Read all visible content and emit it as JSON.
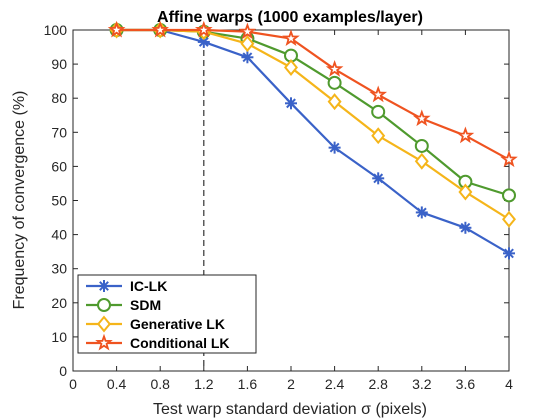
{
  "chart_data": {
    "type": "line",
    "title": "Affine warps (1000 examples/layer)",
    "xlabel": "Test warp standard deviation σ (pixels)",
    "ylabel": "Frequency of convergence (%)",
    "xlim": [
      0,
      4
    ],
    "ylim": [
      0,
      100
    ],
    "xticks": [
      "0",
      "0.4",
      "0.8",
      "1.2",
      "1.6",
      "2",
      "2.4",
      "2.8",
      "3.2",
      "3.6",
      "4"
    ],
    "yticks": [
      "0",
      "10",
      "20",
      "30",
      "40",
      "50",
      "60",
      "70",
      "80",
      "90",
      "100"
    ],
    "x": [
      0.4,
      0.8,
      1.2,
      1.6,
      2.0,
      2.4,
      2.8,
      3.2,
      3.6,
      4.0
    ],
    "reference_line_x": 1.2,
    "grid": false,
    "legend_position": "bottom-left",
    "series": [
      {
        "name": "IC-LK",
        "color": "#3a62c8",
        "marker": "asterisk",
        "values": [
          100,
          100,
          96.5,
          92,
          78.5,
          65.5,
          56.5,
          46.5,
          42,
          34.5
        ]
      },
      {
        "name": "SDM",
        "color": "#4f9a2e",
        "marker": "circle",
        "values": [
          100,
          100,
          99.5,
          97.5,
          92.5,
          84.5,
          76,
          66,
          55.5,
          51.5
        ]
      },
      {
        "name": "Generative LK",
        "color": "#f5b51a",
        "marker": "diamond",
        "values": [
          100,
          100,
          99.5,
          96,
          89,
          79,
          69,
          61.5,
          52.5,
          44.5
        ]
      },
      {
        "name": "Conditional LK",
        "color": "#ef5320",
        "marker": "star",
        "values": [
          100,
          100,
          100,
          99.5,
          97.5,
          88.5,
          81,
          74,
          69,
          62
        ]
      }
    ]
  }
}
